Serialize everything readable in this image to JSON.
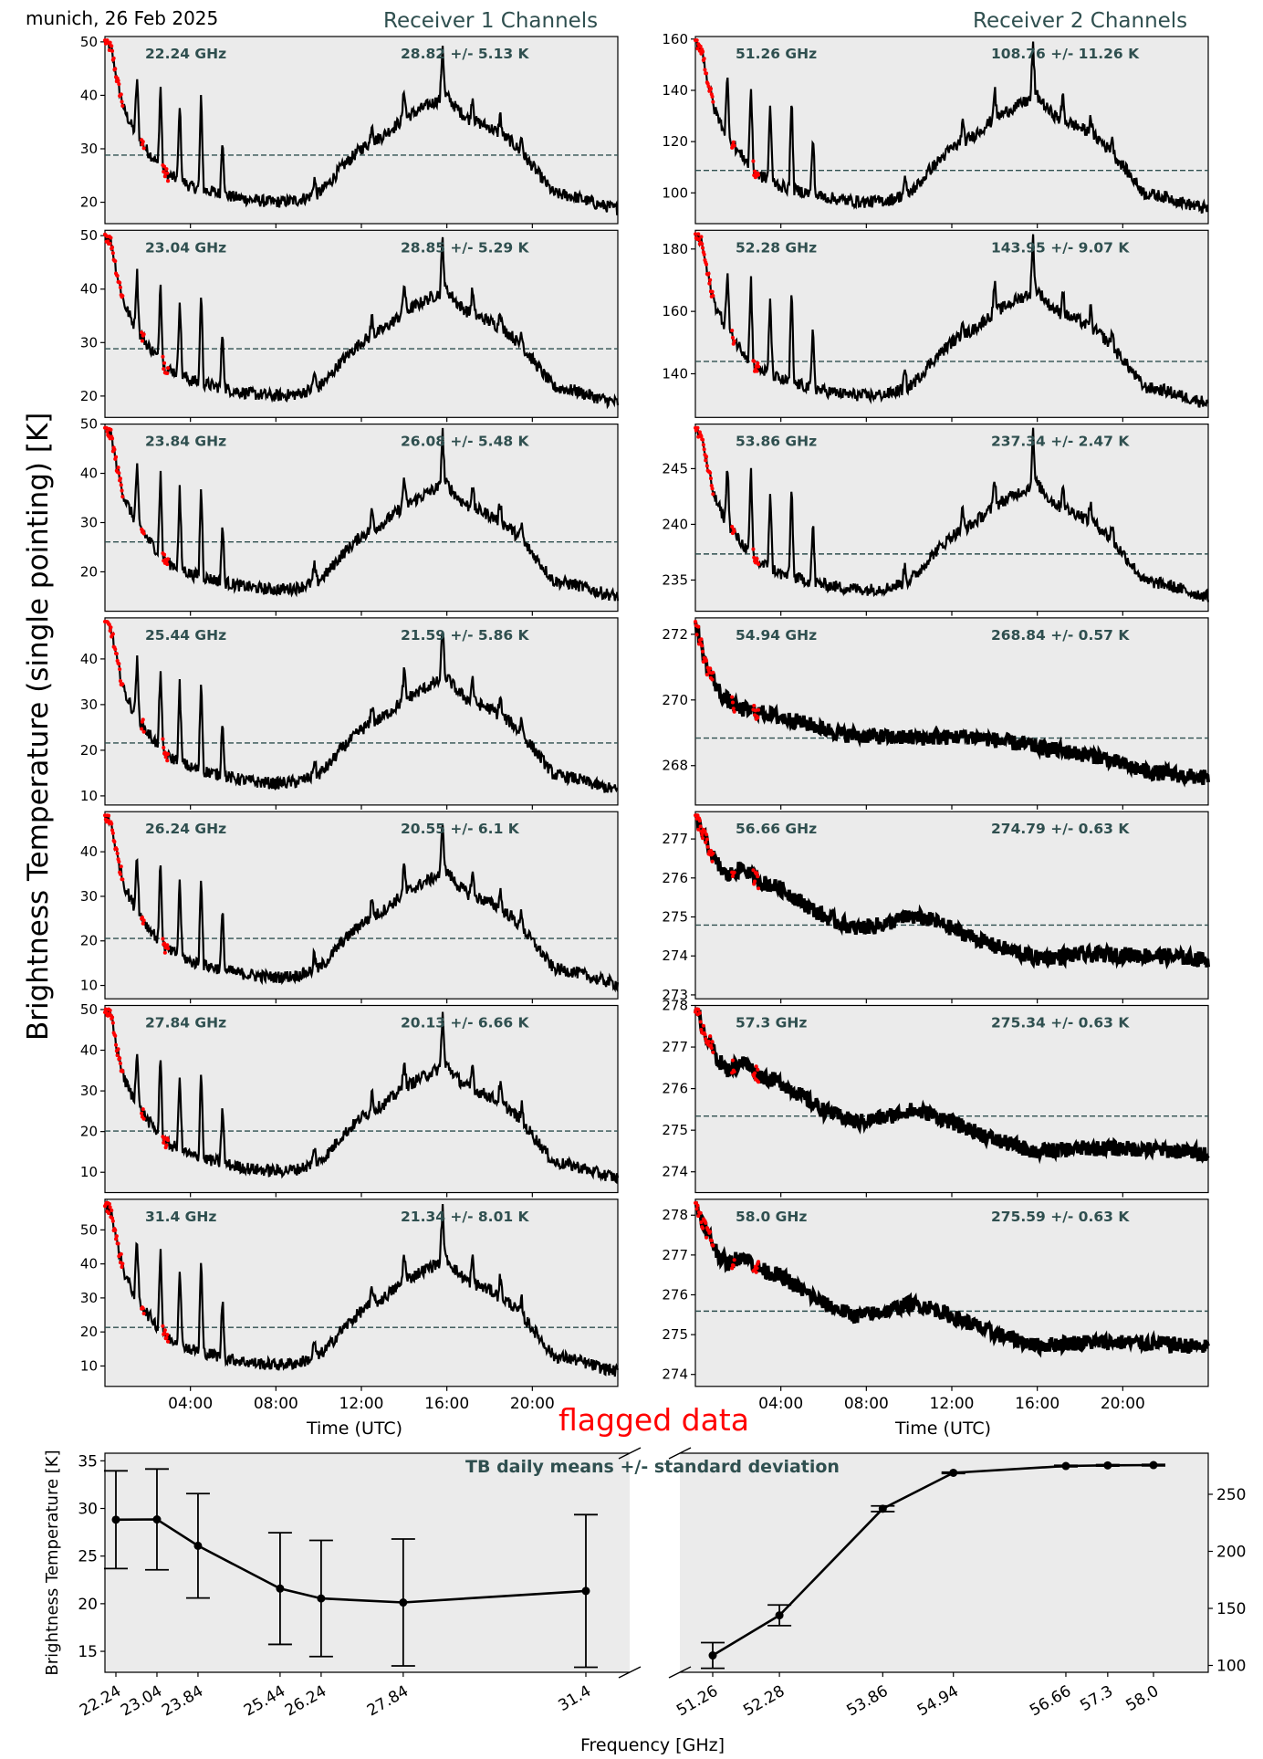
{
  "figure": {
    "location_date": "munich, 26 Feb 2025",
    "receiver1_title": "Receiver 1 Channels",
    "receiver2_title": "Receiver 2 Channels",
    "main_ylabel": "Brightness Temperature (single pointing) [K]",
    "time_xlabel": "Time (UTC)",
    "flag_label": "flagged data",
    "colors": {
      "panel_bg": "#ebebeb",
      "trace": "#000000",
      "flagged": "#ff0000",
      "mean_line": "#2f4f4f",
      "annotation": "#2f4f4f"
    }
  },
  "chart_data": [
    {
      "type": "line",
      "group": "Receiver 1 Channels",
      "xlabel": "Time (UTC)",
      "x_ticks": [
        "04:00",
        "08:00",
        "12:00",
        "16:00",
        "20:00"
      ],
      "x_range_hours": [
        0,
        24
      ],
      "panels": [
        {
          "channel": "22.24 GHz",
          "stat": "28.82 +/- 5.13 K",
          "mean": 28.82,
          "ylim": [
            16,
            51
          ],
          "yticks": [
            20,
            30,
            40,
            50
          ],
          "profile": "r1"
        },
        {
          "channel": "23.04 GHz",
          "stat": "28.85 +/- 5.29 K",
          "mean": 28.85,
          "ylim": [
            16,
            51
          ],
          "yticks": [
            20,
            30,
            40,
            50
          ],
          "profile": "r1"
        },
        {
          "channel": "23.84 GHz",
          "stat": "26.08 +/- 5.48 K",
          "mean": 26.08,
          "ylim": [
            12,
            50
          ],
          "yticks": [
            20,
            30,
            40,
            50
          ],
          "profile": "r1"
        },
        {
          "channel": "25.44 GHz",
          "stat": "21.59 +/- 5.86 K",
          "mean": 21.59,
          "ylim": [
            8,
            49
          ],
          "yticks": [
            10,
            20,
            30,
            40
          ],
          "profile": "r1"
        },
        {
          "channel": "26.24 GHz",
          "stat": "20.55 +/- 6.1 K",
          "mean": 20.55,
          "ylim": [
            7,
            49
          ],
          "yticks": [
            10,
            20,
            30,
            40
          ],
          "profile": "r1"
        },
        {
          "channel": "27.84 GHz",
          "stat": "20.13 +/- 6.66 K",
          "mean": 20.13,
          "ylim": [
            5,
            51
          ],
          "yticks": [
            10,
            20,
            30,
            40,
            50
          ],
          "profile": "r1"
        },
        {
          "channel": "31.4 GHz",
          "stat": "21.34 +/- 8.01 K",
          "mean": 21.34,
          "ylim": [
            4,
            59
          ],
          "yticks": [
            10,
            20,
            30,
            40,
            50
          ],
          "profile": "r1"
        }
      ]
    },
    {
      "type": "line",
      "group": "Receiver 2 Channels",
      "xlabel": "Time (UTC)",
      "x_ticks": [
        "04:00",
        "08:00",
        "12:00",
        "16:00",
        "20:00"
      ],
      "x_range_hours": [
        0,
        24
      ],
      "panels": [
        {
          "channel": "51.26 GHz",
          "stat": "108.76 +/- 11.26 K",
          "mean": 108.76,
          "ylim": [
            88,
            161
          ],
          "yticks": [
            100,
            120,
            140,
            160
          ],
          "profile": "r1"
        },
        {
          "channel": "52.28 GHz",
          "stat": "143.95 +/- 9.07 K",
          "mean": 143.95,
          "ylim": [
            126,
            186
          ],
          "yticks": [
            140,
            160,
            180
          ],
          "profile": "r1"
        },
        {
          "channel": "53.86 GHz",
          "stat": "237.34 +/- 2.47 K",
          "mean": 237.34,
          "ylim": [
            232.2,
            249
          ],
          "yticks": [
            235,
            240,
            245
          ],
          "profile": "r1"
        },
        {
          "channel": "54.94 GHz",
          "stat": "268.84 +/- 0.57 K",
          "mean": 268.84,
          "ylim": [
            266.8,
            272.5
          ],
          "yticks": [
            268,
            270,
            272
          ],
          "profile": "flat"
        },
        {
          "channel": "56.66 GHz",
          "stat": "274.79 +/- 0.63 K",
          "mean": 274.79,
          "ylim": [
            272.9,
            277.7
          ],
          "yticks": [
            273,
            274,
            275,
            276,
            277
          ],
          "profile": "wave"
        },
        {
          "channel": "57.3 GHz",
          "stat": "275.34 +/- 0.63 K",
          "mean": 275.34,
          "ylim": [
            273.5,
            278
          ],
          "yticks": [
            274,
            275,
            276,
            277,
            278
          ],
          "profile": "wave"
        },
        {
          "channel": "58.0 GHz",
          "stat": "275.59 +/- 0.63 K",
          "mean": 275.59,
          "ylim": [
            273.7,
            278.4
          ],
          "yticks": [
            274,
            275,
            276,
            277,
            278
          ],
          "profile": "wave"
        }
      ]
    },
    {
      "type": "line",
      "title": "TB daily means +/- standard deviation",
      "xlabel": "Frequency [GHz]",
      "ylabel": "Brightness Temperature [K]",
      "left_axis": {
        "x": [
          22.24,
          23.04,
          23.84,
          25.44,
          26.24,
          27.84,
          31.4
        ],
        "tick_labels": [
          "22.24",
          "23.04",
          "23.84",
          "25.44",
          "26.24",
          "27.84",
          "31.4"
        ],
        "y": [
          28.82,
          28.85,
          26.08,
          21.59,
          20.55,
          20.13,
          21.34
        ],
        "err": [
          5.13,
          5.29,
          5.48,
          5.86,
          6.1,
          6.66,
          8.01
        ],
        "ylim": [
          12.8,
          35.8
        ],
        "yticks": [
          15,
          20,
          25,
          30,
          35
        ]
      },
      "right_axis": {
        "x": [
          51.26,
          52.28,
          53.86,
          54.94,
          56.66,
          57.3,
          58.0
        ],
        "tick_labels": [
          "51.26",
          "52.28",
          "53.86",
          "54.94",
          "56.66",
          "57.3",
          "58.0"
        ],
        "y": [
          108.76,
          143.95,
          237.34,
          268.84,
          274.79,
          275.34,
          275.59
        ],
        "err": [
          11.26,
          9.07,
          2.47,
          0.57,
          0.63,
          0.63,
          0.63
        ],
        "ylim": [
          94,
          286
        ],
        "yticks": [
          100,
          150,
          200,
          250
        ]
      }
    }
  ]
}
